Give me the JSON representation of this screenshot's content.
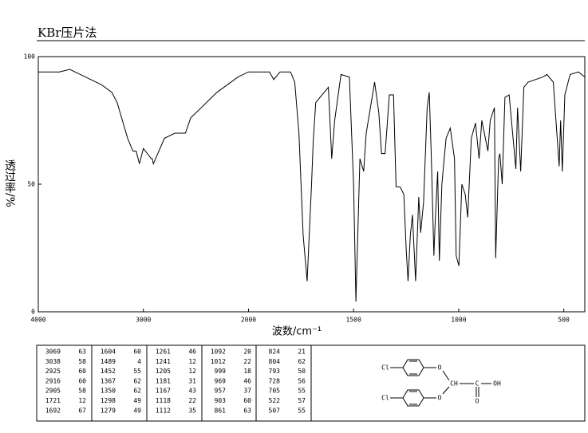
{
  "chart_data": {
    "type": "line",
    "title": "KBr压片法",
    "xlabel": "波数/cm⁻¹",
    "ylabel": "透过率/%",
    "x": [
      4000,
      3800,
      3700,
      3600,
      3500,
      3400,
      3300,
      3250,
      3200,
      3150,
      3100,
      3069,
      3038,
      3000,
      2925,
      2916,
      2905,
      2800,
      2700,
      2600,
      2550,
      2400,
      2300,
      2200,
      2100,
      2000,
      1900,
      1880,
      1850,
      1800,
      1780,
      1760,
      1740,
      1721,
      1700,
      1692,
      1680,
      1620,
      1604,
      1590,
      1560,
      1520,
      1500,
      1489,
      1470,
      1452,
      1440,
      1400,
      1380,
      1367,
      1350,
      1330,
      1310,
      1298,
      1279,
      1261,
      1250,
      1241,
      1230,
      1220,
      1205,
      1190,
      1181,
      1167,
      1150,
      1140,
      1130,
      1118,
      1112,
      1100,
      1092,
      1080,
      1060,
      1040,
      1020,
      1012,
      999,
      985,
      969,
      957,
      940,
      920,
      903,
      890,
      861,
      850,
      830,
      824,
      810,
      804,
      793,
      780,
      760,
      728,
      720,
      705,
      690,
      670,
      600,
      580,
      550,
      522,
      515,
      507,
      495,
      470,
      430,
      400
    ],
    "values": [
      94,
      94,
      95,
      93,
      91,
      89,
      86,
      82,
      75,
      68,
      63,
      63,
      58,
      64,
      60,
      60,
      58,
      68,
      70,
      70,
      76,
      82,
      86,
      89,
      92,
      94,
      94,
      91,
      94,
      94,
      90,
      70,
      30,
      12,
      50,
      67,
      82,
      88,
      60,
      75,
      93,
      92,
      50,
      4,
      60,
      55,
      70,
      90,
      78,
      62,
      62,
      85,
      85,
      49,
      49,
      46,
      25,
      12,
      30,
      38,
      12,
      45,
      31,
      43,
      80,
      86,
      60,
      22,
      35,
      55,
      20,
      50,
      68,
      72,
      60,
      22,
      18,
      50,
      46,
      37,
      68,
      74,
      60,
      75,
      63,
      75,
      80,
      21,
      60,
      62,
      50,
      84,
      85,
      56,
      80,
      55,
      88,
      90,
      92,
      93,
      90,
      57,
      75,
      55,
      85,
      93,
      94,
      92
    ],
    "color": "#000000",
    "xlim": [
      4000,
      400
    ],
    "x_break": 2000,
    "x_break_ratio": 2,
    "xticks": [
      4000,
      3000,
      2000,
      1500,
      1000,
      500
    ],
    "ylim": [
      0,
      100
    ],
    "yticks": [
      0,
      50,
      100
    ],
    "grid": false
  },
  "peak_table": {
    "columns": [
      [
        [
          3069,
          63
        ],
        [
          3038,
          58
        ],
        [
          2925,
          60
        ],
        [
          2916,
          60
        ],
        [
          2905,
          58
        ],
        [
          1721,
          12
        ],
        [
          1692,
          67
        ]
      ],
      [
        [
          1604,
          60
        ],
        [
          1489,
          4
        ],
        [
          1452,
          55
        ],
        [
          1367,
          62
        ],
        [
          1350,
          62
        ],
        [
          1298,
          49
        ],
        [
          1279,
          49
        ]
      ],
      [
        [
          1261,
          46
        ],
        [
          1241,
          12
        ],
        [
          1205,
          12
        ],
        [
          1181,
          31
        ],
        [
          1167,
          43
        ],
        [
          1118,
          22
        ],
        [
          1112,
          35
        ]
      ],
      [
        [
          1092,
          20
        ],
        [
          1012,
          22
        ],
        [
          999,
          18
        ],
        [
          969,
          46
        ],
        [
          957,
          37
        ],
        [
          903,
          60
        ],
        [
          861,
          63
        ]
      ],
      [
        [
          824,
          21
        ],
        [
          804,
          62
        ],
        [
          793,
          50
        ],
        [
          728,
          56
        ],
        [
          705,
          55
        ],
        [
          522,
          57
        ],
        [
          507,
          55
        ]
      ]
    ]
  },
  "structure": {
    "labels": [
      "Cl",
      "O",
      "CH",
      "C",
      "OH",
      "O",
      "Cl",
      "O"
    ]
  }
}
